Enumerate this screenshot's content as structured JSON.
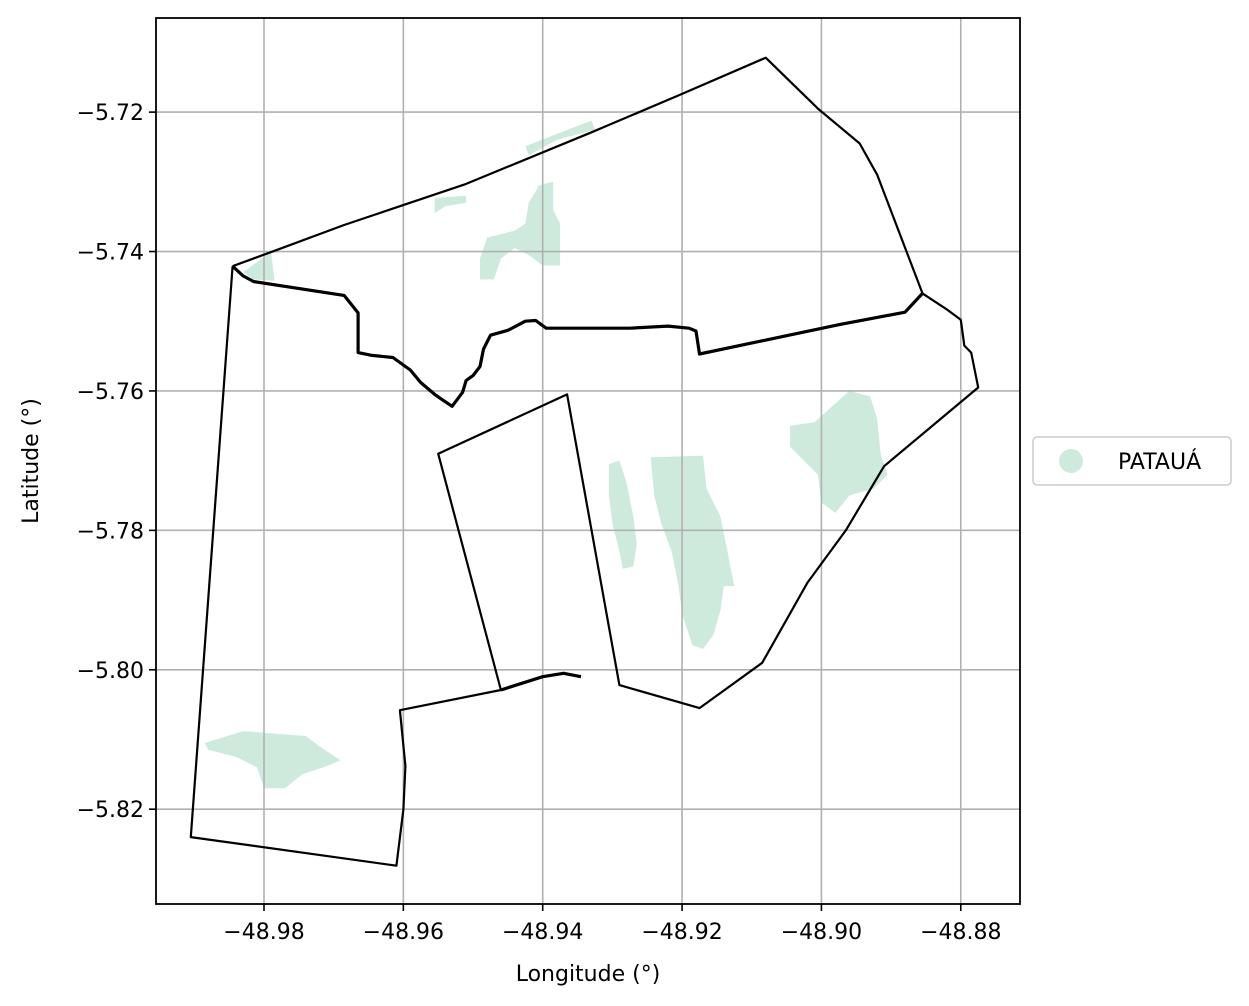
{
  "chart_data": {
    "type": "map",
    "title": "",
    "xlabel": "Longitude (°)",
    "ylabel": "Latitude (°)",
    "xlim": [
      -48.9955,
      -48.8715
    ],
    "ylim": [
      -5.8336,
      -5.7065
    ],
    "grid": true,
    "x_ticks": [
      {
        "value": -48.98,
        "label": "−48.98"
      },
      {
        "value": -48.96,
        "label": "−48.96"
      },
      {
        "value": -48.94,
        "label": "−48.94"
      },
      {
        "value": -48.92,
        "label": "−48.92"
      },
      {
        "value": -48.9,
        "label": "−48.90"
      },
      {
        "value": -48.88,
        "label": "−48.88"
      }
    ],
    "y_ticks": [
      {
        "value": -5.72,
        "label": "−5.72"
      },
      {
        "value": -5.74,
        "label": "−5.74"
      },
      {
        "value": -5.76,
        "label": "−5.76"
      },
      {
        "value": -5.78,
        "label": "−5.78"
      },
      {
        "value": -5.8,
        "label": "−5.80"
      },
      {
        "value": -5.82,
        "label": "−5.82"
      }
    ],
    "legend": {
      "placement": "center-right-outside",
      "entries": [
        {
          "label": "PATAUÁ",
          "color": "#cdeadc"
        }
      ]
    },
    "colors": {
      "patch": "#cdeadc",
      "boundary": "#000000",
      "grid": "#b0b0b0"
    },
    "boundaries": [
      {
        "name": "north-outer",
        "weight": "thin",
        "coords": [
          [
            -48.9845,
            -5.7421
          ],
          [
            -48.9785,
            -5.7399
          ],
          [
            -48.9685,
            -5.7362
          ],
          [
            -48.951,
            -5.7303
          ],
          [
            -48.933,
            -5.7229
          ],
          [
            -48.9205,
            -5.7176
          ],
          [
            -48.908,
            -5.7122
          ],
          [
            -48.9005,
            -5.7195
          ],
          [
            -48.8945,
            -5.7245
          ],
          [
            -48.892,
            -5.729
          ],
          [
            -48.8855,
            -5.746
          ]
        ]
      },
      {
        "name": "north-inner-divide",
        "weight": "thick",
        "coords": [
          [
            -48.9845,
            -5.7421
          ],
          [
            -48.983,
            -5.7435
          ],
          [
            -48.9815,
            -5.7443
          ],
          [
            -48.9685,
            -5.7463
          ],
          [
            -48.9665,
            -5.7488
          ],
          [
            -48.9665,
            -5.7545
          ],
          [
            -48.9645,
            -5.7549
          ],
          [
            -48.9615,
            -5.7552
          ],
          [
            -48.959,
            -5.757
          ],
          [
            -48.9575,
            -5.7588
          ],
          [
            -48.9555,
            -5.7605
          ],
          [
            -48.9545,
            -5.7612
          ],
          [
            -48.953,
            -5.7622
          ],
          [
            -48.9515,
            -5.7602
          ],
          [
            -48.951,
            -5.7585
          ],
          [
            -48.95,
            -5.7578
          ],
          [
            -48.949,
            -5.7565
          ],
          [
            -48.9485,
            -5.754
          ],
          [
            -48.9475,
            -5.752
          ],
          [
            -48.945,
            -5.7513
          ],
          [
            -48.9425,
            -5.75
          ],
          [
            -48.941,
            -5.7499
          ],
          [
            -48.9395,
            -5.751
          ],
          [
            -48.9275,
            -5.751
          ],
          [
            -48.922,
            -5.7507
          ],
          [
            -48.919,
            -5.751
          ],
          [
            -48.918,
            -5.7514
          ],
          [
            -48.9175,
            -5.7547
          ],
          [
            -48.8975,
            -5.7505
          ],
          [
            -48.888,
            -5.7487
          ],
          [
            -48.8855,
            -5.746
          ]
        ]
      },
      {
        "name": "west-polygon",
        "weight": "thin",
        "coords": [
          [
            -48.9845,
            -5.7421
          ],
          [
            -48.9905,
            -5.824
          ],
          [
            -48.961,
            -5.8281
          ],
          [
            -48.96,
            -5.82
          ],
          [
            -48.9597,
            -5.8138
          ],
          [
            -48.9605,
            -5.8058
          ],
          [
            -48.946,
            -5.8029
          ]
        ]
      },
      {
        "name": "east-polygon",
        "weight": "thin",
        "coords": [
          [
            -48.8855,
            -5.746
          ],
          [
            -48.882,
            -5.7483
          ],
          [
            -48.88,
            -5.7498
          ],
          [
            -48.8795,
            -5.7535
          ],
          [
            -48.8785,
            -5.7545
          ],
          [
            -48.8775,
            -5.7595
          ],
          [
            -48.891,
            -5.7708
          ],
          [
            -48.8965,
            -5.78
          ],
          [
            -48.902,
            -5.7875
          ],
          [
            -48.9085,
            -5.799
          ],
          [
            -48.9175,
            -5.8055
          ],
          [
            -48.929,
            -5.8022
          ],
          [
            -48.9365,
            -5.7605
          ],
          [
            -48.955,
            -5.769
          ],
          [
            -48.946,
            -5.8029
          ]
        ]
      },
      {
        "name": "south-connector",
        "weight": "thick",
        "coords": [
          [
            -48.946,
            -5.8029
          ],
          [
            -48.94,
            -5.801
          ],
          [
            -48.937,
            -5.8005
          ],
          [
            -48.9345,
            -5.801
          ]
        ]
      }
    ],
    "patches": [
      {
        "name": "patch-far-north-strip",
        "coords": [
          [
            -48.9425,
            -5.7249
          ],
          [
            -48.933,
            -5.7212
          ],
          [
            -48.9325,
            -5.7225
          ],
          [
            -48.938,
            -5.724
          ],
          [
            -48.942,
            -5.7262
          ]
        ]
      },
      {
        "name": "patch-north-small",
        "coords": [
          [
            -48.9555,
            -5.7323
          ],
          [
            -48.951,
            -5.732
          ],
          [
            -48.951,
            -5.733
          ],
          [
            -48.954,
            -5.7335
          ],
          [
            -48.9555,
            -5.7345
          ]
        ]
      },
      {
        "name": "patch-north-central",
        "coords": [
          [
            -48.9405,
            -5.7305
          ],
          [
            -48.9385,
            -5.73
          ],
          [
            -48.9385,
            -5.734
          ],
          [
            -48.9375,
            -5.736
          ],
          [
            -48.9375,
            -5.742
          ],
          [
            -48.94,
            -5.742
          ],
          [
            -48.942,
            -5.7405
          ],
          [
            -48.944,
            -5.7395
          ],
          [
            -48.946,
            -5.741
          ],
          [
            -48.947,
            -5.744
          ],
          [
            -48.949,
            -5.744
          ],
          [
            -48.949,
            -5.741
          ],
          [
            -48.948,
            -5.738
          ],
          [
            -48.946,
            -5.7375
          ],
          [
            -48.944,
            -5.737
          ],
          [
            -48.9425,
            -5.736
          ],
          [
            -48.942,
            -5.733
          ]
        ]
      },
      {
        "name": "patch-northwest-corner",
        "coords": [
          [
            -48.983,
            -5.743
          ],
          [
            -48.979,
            -5.74
          ],
          [
            -48.9785,
            -5.7442
          ],
          [
            -48.9815,
            -5.744
          ]
        ]
      },
      {
        "name": "patch-east-large",
        "coords": [
          [
            -48.901,
            -5.7645
          ],
          [
            -48.896,
            -5.76
          ],
          [
            -48.893,
            -5.7608
          ],
          [
            -48.892,
            -5.764
          ],
          [
            -48.8915,
            -5.769
          ],
          [
            -48.8905,
            -5.772
          ],
          [
            -48.8925,
            -5.774
          ],
          [
            -48.896,
            -5.775
          ],
          [
            -48.898,
            -5.7775
          ],
          [
            -48.9,
            -5.776
          ],
          [
            -48.9005,
            -5.772
          ],
          [
            -48.9025,
            -5.77
          ],
          [
            -48.9045,
            -5.768
          ],
          [
            -48.9045,
            -5.765
          ]
        ]
      },
      {
        "name": "patch-central-long",
        "coords": [
          [
            -48.9245,
            -5.7695
          ],
          [
            -48.917,
            -5.7693
          ],
          [
            -48.9165,
            -5.774
          ],
          [
            -48.9145,
            -5.778
          ],
          [
            -48.9135,
            -5.783
          ],
          [
            -48.9125,
            -5.788
          ],
          [
            -48.914,
            -5.788
          ],
          [
            -48.9145,
            -5.7915
          ],
          [
            -48.9155,
            -5.795
          ],
          [
            -48.917,
            -5.797
          ],
          [
            -48.9185,
            -5.7965
          ],
          [
            -48.92,
            -5.792
          ],
          [
            -48.9205,
            -5.788
          ],
          [
            -48.9215,
            -5.783
          ],
          [
            -48.923,
            -5.779
          ],
          [
            -48.924,
            -5.775
          ]
        ]
      },
      {
        "name": "patch-central-thin",
        "coords": [
          [
            -48.9305,
            -5.7705
          ],
          [
            -48.929,
            -5.77
          ],
          [
            -48.928,
            -5.773
          ],
          [
            -48.927,
            -5.778
          ],
          [
            -48.9265,
            -5.782
          ],
          [
            -48.927,
            -5.7852
          ],
          [
            -48.9285,
            -5.7855
          ],
          [
            -48.929,
            -5.783
          ],
          [
            -48.93,
            -5.779
          ],
          [
            -48.9305,
            -5.775
          ]
        ]
      },
      {
        "name": "patch-southwest",
        "coords": [
          [
            -48.9885,
            -5.8105
          ],
          [
            -48.983,
            -5.8088
          ],
          [
            -48.974,
            -5.8095
          ],
          [
            -48.972,
            -5.811
          ],
          [
            -48.969,
            -5.813
          ],
          [
            -48.9715,
            -5.814
          ],
          [
            -48.9745,
            -5.815
          ],
          [
            -48.977,
            -5.817
          ],
          [
            -48.98,
            -5.817
          ],
          [
            -48.981,
            -5.814
          ],
          [
            -48.984,
            -5.8125
          ],
          [
            -48.988,
            -5.8115
          ]
        ]
      }
    ]
  }
}
